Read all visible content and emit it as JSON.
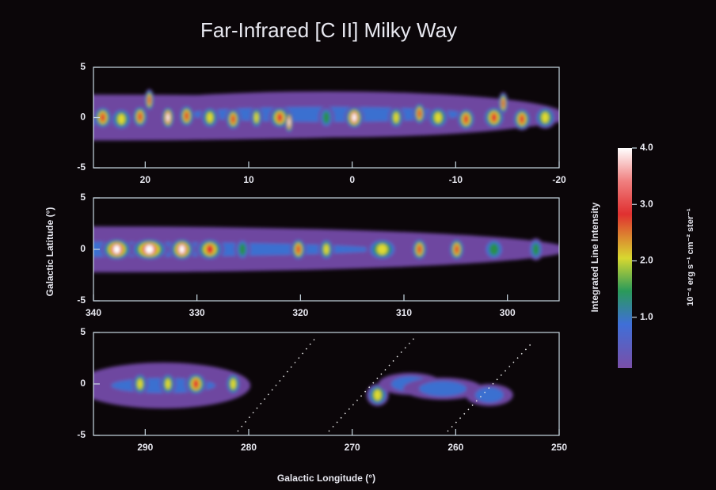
{
  "title": "Far-Infrared [C II] Milky Way",
  "y_label": "Galactic Latitude (°)",
  "x_label": "Galactic Longitude (°)",
  "chart_data": [
    {
      "type": "image",
      "xlim": [
        25,
        -20
      ],
      "xticks": [
        20,
        10,
        0,
        -10,
        -20
      ],
      "ylim": [
        -5,
        5
      ],
      "yticks": [
        -5,
        0,
        5
      ]
    },
    {
      "type": "image",
      "xlim": [
        340,
        295
      ],
      "xticks": [
        340,
        330,
        320,
        310,
        300
      ],
      "ylim": [
        -5,
        5
      ],
      "yticks": [
        -5,
        0,
        5
      ]
    },
    {
      "type": "image",
      "xlim": [
        295,
        250
      ],
      "xticks": [
        290,
        280,
        270,
        260,
        250
      ],
      "ylim": [
        -5,
        5
      ],
      "yticks": [
        -5,
        0,
        5
      ]
    }
  ],
  "colorbar": {
    "label": "Integrated Line Intensity",
    "unit": "10⁻⁴ erg s⁻¹ cm⁻² ster⁻¹",
    "clim": [
      0.1,
      4.0
    ],
    "ticks": [
      {
        "value": 1,
        "label": "1.0"
      },
      {
        "value": 2,
        "label": "2.0"
      },
      {
        "value": 3,
        "label": "3.0"
      },
      {
        "value": 4,
        "label": "4.0"
      }
    ]
  }
}
